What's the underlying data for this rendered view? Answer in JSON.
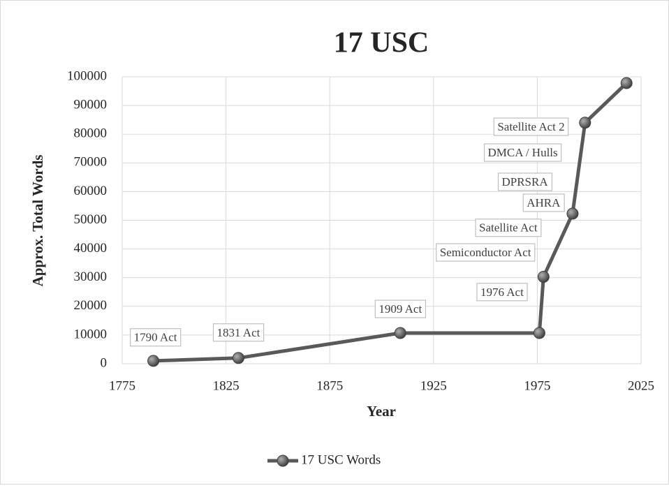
{
  "chart_data": {
    "type": "line",
    "title": "17 USC",
    "x_label": "Year",
    "y_label": "Approx. Total Words",
    "xlim": [
      1775,
      2025
    ],
    "xticks": [
      1775,
      1825,
      1875,
      1925,
      1975,
      2025
    ],
    "ylim": [
      0,
      100000
    ],
    "yticks": [
      0,
      10000,
      20000,
      30000,
      40000,
      50000,
      60000,
      70000,
      80000,
      90000,
      100000
    ],
    "grid": true,
    "legend": "bottom",
    "series": [
      {
        "name": "17 USC Words",
        "color": "#595959",
        "x": [
          1790,
          1831,
          1909,
          1976,
          1978,
          1992,
          1998,
          2018
        ],
        "values": [
          1000,
          2000,
          10700,
          10700,
          30300,
          52300,
          84000,
          97800
        ]
      }
    ],
    "annotations": [
      {
        "text": "1790 Act",
        "x": 1791,
        "y": 8800
      },
      {
        "text": "1831 Act",
        "x": 1831,
        "y": 10500
      },
      {
        "text": "1909 Act",
        "x": 1909,
        "y": 18700
      },
      {
        "text": "1976 Act",
        "x": 1958,
        "y": 24600
      },
      {
        "text": "Semiconductor Act",
        "x": 1950,
        "y": 38400
      },
      {
        "text": "Satellite Act",
        "x": 1961,
        "y": 47000
      },
      {
        "text": "AHRA",
        "x": 1978,
        "y": 55700
      },
      {
        "text": "DPRSRA",
        "x": 1969,
        "y": 63000
      },
      {
        "text": "DMCA / Hulls",
        "x": 1968,
        "y": 73200
      },
      {
        "text": "Satellite Act 2",
        "x": 1972,
        "y": 82200
      }
    ]
  }
}
